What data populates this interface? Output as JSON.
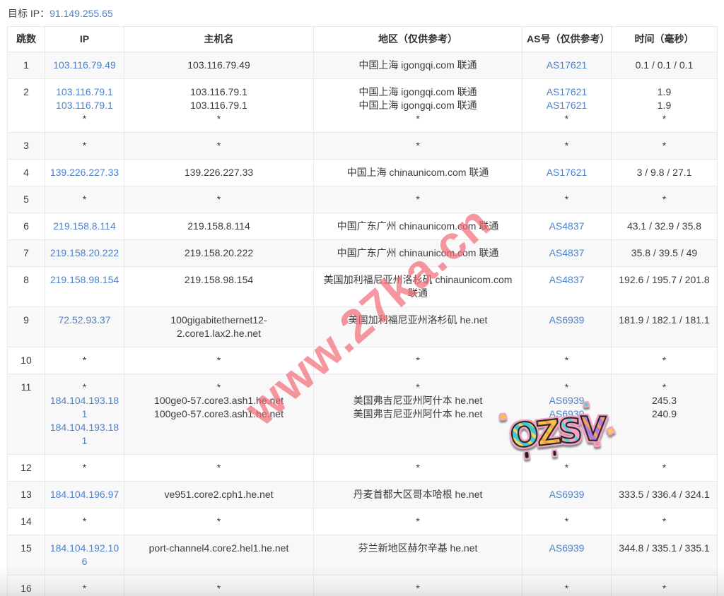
{
  "page": {
    "target_ip_label": "目标 IP：",
    "target_ip": "91.149.255.65"
  },
  "colors": {
    "link_blue": "#4d82cc",
    "watermark_pink": "rgba(242,105,118,0.70)",
    "row_stripe": "#f8f8f8",
    "border": "#e9e9e9"
  },
  "watermark": {
    "text": "www.27ka.cn"
  },
  "sticker": {
    "text": "OZSV",
    "letters": [
      {
        "char": "O",
        "c1": "#45c8cf",
        "c2": "#f6d35e",
        "rot": -6
      },
      {
        "char": "Z",
        "c1": "#f6c445",
        "c2": "#f49a56",
        "rot": -2
      },
      {
        "char": "S",
        "c1": "#ff9ec6",
        "c2": "#5bd0d0",
        "rot": 2
      },
      {
        "char": "V",
        "c1": "#b07ae8",
        "c2": "#f9a14d",
        "rot": 6
      }
    ],
    "sparkle": "✦"
  },
  "table": {
    "headers": [
      "跳数",
      "IP",
      "主机名",
      "地区（仅供参考）",
      "AS号（仅供参考）",
      "时间（毫秒）"
    ],
    "rows": [
      {
        "hop": "1",
        "ip": [
          "103.116.79.49"
        ],
        "host": [
          "103.116.79.49"
        ],
        "region": [
          "中国上海 igongqi.com 联通"
        ],
        "asn": [
          "AS17621"
        ],
        "time": [
          "0.1 / 0.1 / 0.1"
        ]
      },
      {
        "hop": "2",
        "ip": [
          "103.116.79.1",
          "103.116.79.1",
          "*"
        ],
        "host": [
          "103.116.79.1",
          "103.116.79.1",
          "*"
        ],
        "region": [
          "中国上海 igongqi.com 联通",
          "中国上海 igongqi.com 联通",
          "*"
        ],
        "asn": [
          "AS17621",
          "AS17621",
          "*"
        ],
        "time": [
          "1.9",
          "1.9",
          "*"
        ]
      },
      {
        "hop": "3",
        "ip": [
          "*"
        ],
        "host": [
          "*"
        ],
        "region": [
          "*"
        ],
        "asn": [
          "*"
        ],
        "time": [
          "*"
        ]
      },
      {
        "hop": "4",
        "ip": [
          "139.226.227.33"
        ],
        "host": [
          "139.226.227.33"
        ],
        "region": [
          "中国上海 chinaunicom.com 联通"
        ],
        "asn": [
          "AS17621"
        ],
        "time": [
          "3 / 9.8 / 27.1"
        ]
      },
      {
        "hop": "5",
        "ip": [
          "*"
        ],
        "host": [
          "*"
        ],
        "region": [
          "*"
        ],
        "asn": [
          "*"
        ],
        "time": [
          "*"
        ]
      },
      {
        "hop": "6",
        "ip": [
          "219.158.8.114"
        ],
        "host": [
          "219.158.8.114"
        ],
        "region": [
          "中国广东广州 chinaunicom.com 联通"
        ],
        "asn": [
          "AS4837"
        ],
        "time": [
          "43.1 / 32.9 / 35.8"
        ]
      },
      {
        "hop": "7",
        "ip": [
          "219.158.20.222"
        ],
        "host": [
          "219.158.20.222"
        ],
        "region": [
          "中国广东广州 chinaunicom.com 联通"
        ],
        "asn": [
          "AS4837"
        ],
        "time": [
          "35.8 / 39.5 / 49"
        ]
      },
      {
        "hop": "8",
        "ip": [
          "219.158.98.154"
        ],
        "host": [
          "219.158.98.154"
        ],
        "region": [
          "美国加利福尼亚州洛杉矶 chinaunicom.com 联通"
        ],
        "asn": [
          "AS4837"
        ],
        "time": [
          "192.6 / 195.7 / 201.8"
        ]
      },
      {
        "hop": "9",
        "ip": [
          "72.52.93.37"
        ],
        "host": [
          "100gigabitethernet12-2.core1.lax2.he.net"
        ],
        "region": [
          "美国加利福尼亚州洛杉矶 he.net"
        ],
        "asn": [
          "AS6939"
        ],
        "time": [
          "181.9 / 182.1 / 181.1"
        ]
      },
      {
        "hop": "10",
        "ip": [
          "*"
        ],
        "host": [
          "*"
        ],
        "region": [
          "*"
        ],
        "asn": [
          "*"
        ],
        "time": [
          "*"
        ]
      },
      {
        "hop": "11",
        "ip": [
          "*",
          "184.104.193.181",
          "184.104.193.181"
        ],
        "host": [
          "*",
          "100ge0-57.core3.ash1.he.net",
          "100ge0-57.core3.ash1.he.net"
        ],
        "region": [
          "*",
          "美国弗吉尼亚州阿什本 he.net",
          "美国弗吉尼亚州阿什本 he.net"
        ],
        "asn": [
          "*",
          "AS6939",
          "AS6939"
        ],
        "time": [
          "*",
          "245.3",
          "240.9"
        ]
      },
      {
        "hop": "12",
        "ip": [
          "*"
        ],
        "host": [
          "*"
        ],
        "region": [
          "*"
        ],
        "asn": [
          "*"
        ],
        "time": [
          "*"
        ]
      },
      {
        "hop": "13",
        "ip": [
          "184.104.196.97"
        ],
        "host": [
          "ve951.core2.cph1.he.net"
        ],
        "region": [
          "丹麦首都大区哥本哈根 he.net"
        ],
        "asn": [
          "AS6939"
        ],
        "time": [
          "333.5 / 336.4 / 324.1"
        ]
      },
      {
        "hop": "14",
        "ip": [
          "*"
        ],
        "host": [
          "*"
        ],
        "region": [
          "*"
        ],
        "asn": [
          "*"
        ],
        "time": [
          "*"
        ]
      },
      {
        "hop": "15",
        "ip": [
          "184.104.192.106"
        ],
        "host": [
          "port-channel4.core2.hel1.he.net"
        ],
        "region": [
          "芬兰新地区赫尔辛基 he.net"
        ],
        "asn": [
          "AS6939"
        ],
        "time": [
          "344.8 / 335.1 / 335.1"
        ]
      },
      {
        "hop": "16",
        "ip": [
          "*"
        ],
        "host": [
          "*"
        ],
        "region": [
          "*"
        ],
        "asn": [
          "*"
        ],
        "time": [
          "*"
        ]
      }
    ]
  }
}
